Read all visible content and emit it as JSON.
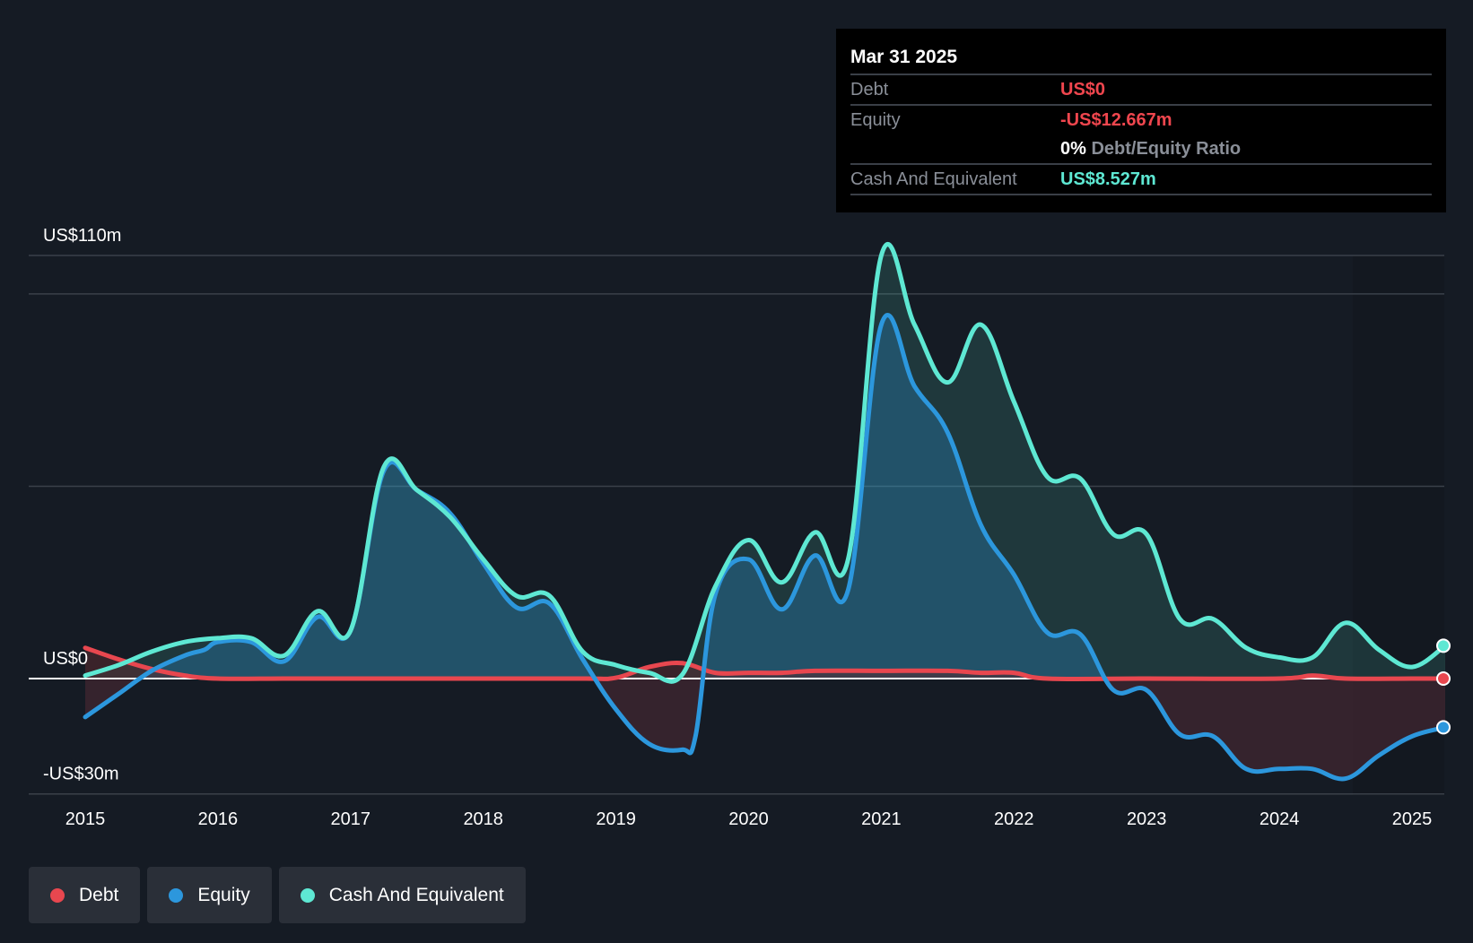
{
  "tooltip": {
    "date": "Mar 31 2025",
    "debt_label": "Debt",
    "debt_value": "US$0",
    "equity_label": "Equity",
    "equity_value": "-US$12.667m",
    "ratio_pct": "0%",
    "ratio_label": "Debt/Equity Ratio",
    "cash_label": "Cash And Equivalent",
    "cash_value": "US$8.527m"
  },
  "legend": [
    {
      "label": "Debt",
      "color": "#e8474f"
    },
    {
      "label": "Equity",
      "color": "#2c97dd"
    },
    {
      "label": "Cash And Equivalent",
      "color": "#5ee8d3"
    }
  ],
  "chart_data": {
    "type": "area",
    "y_tick_labels": [
      "US$110m",
      "US$0",
      "-US$30m"
    ],
    "ylim": [
      -30,
      110
    ],
    "xlim": [
      2015,
      2025.25
    ],
    "x_tick_labels": [
      "2015",
      "2016",
      "2017",
      "2018",
      "2019",
      "2020",
      "2021",
      "2022",
      "2023",
      "2024",
      "2025"
    ],
    "x_ticks": [
      2015,
      2016,
      2017,
      2018,
      2019,
      2020,
      2021,
      2022,
      2023,
      2024,
      2025
    ],
    "gridlines": [
      110,
      100,
      50,
      0,
      -30
    ],
    "colors": {
      "debt": "#e8474f",
      "equity": "#2c97dd",
      "cash": "#5ee8d3"
    },
    "series": [
      {
        "name": "Debt",
        "points": [
          [
            2015,
            8
          ],
          [
            2015.25,
            5
          ],
          [
            2015.5,
            2.5
          ],
          [
            2015.75,
            0.8
          ],
          [
            2016,
            0
          ],
          [
            2016.5,
            0
          ],
          [
            2017,
            0
          ],
          [
            2018,
            0
          ],
          [
            2018.75,
            0
          ],
          [
            2019,
            0.2
          ],
          [
            2019.25,
            3
          ],
          [
            2019.5,
            4
          ],
          [
            2019.75,
            1.5
          ],
          [
            2020,
            1.5
          ],
          [
            2020.25,
            1.5
          ],
          [
            2020.5,
            2
          ],
          [
            2021,
            2
          ],
          [
            2021.5,
            2
          ],
          [
            2021.75,
            1.5
          ],
          [
            2022,
            1.5
          ],
          [
            2022.25,
            0
          ],
          [
            2023,
            0
          ],
          [
            2024,
            0
          ],
          [
            2024.25,
            0.8
          ],
          [
            2024.5,
            0
          ],
          [
            2025,
            0
          ],
          [
            2025.25,
            0
          ]
        ]
      },
      {
        "name": "Equity",
        "points": [
          [
            2015,
            -10
          ],
          [
            2015.25,
            -4
          ],
          [
            2015.5,
            2
          ],
          [
            2015.75,
            6
          ],
          [
            2015.9,
            7.5
          ],
          [
            2016,
            9.5
          ],
          [
            2016.25,
            9.5
          ],
          [
            2016.5,
            4.5
          ],
          [
            2016.75,
            16
          ],
          [
            2017,
            12.5
          ],
          [
            2017.25,
            54
          ],
          [
            2017.5,
            49
          ],
          [
            2017.75,
            43
          ],
          [
            2018,
            30
          ],
          [
            2018.25,
            18.5
          ],
          [
            2018.5,
            19.5
          ],
          [
            2018.75,
            5
          ],
          [
            2019,
            -8
          ],
          [
            2019.25,
            -17
          ],
          [
            2019.5,
            -18.5
          ],
          [
            2019.6,
            -15
          ],
          [
            2019.75,
            22
          ],
          [
            2020,
            31
          ],
          [
            2020.25,
            18
          ],
          [
            2020.5,
            32
          ],
          [
            2020.75,
            23
          ],
          [
            2021,
            92
          ],
          [
            2021.25,
            76
          ],
          [
            2021.5,
            64
          ],
          [
            2021.75,
            40
          ],
          [
            2022,
            27
          ],
          [
            2022.25,
            12
          ],
          [
            2022.5,
            11.5
          ],
          [
            2022.75,
            -3
          ],
          [
            2023,
            -3
          ],
          [
            2023.25,
            -14.5
          ],
          [
            2023.5,
            -15
          ],
          [
            2023.75,
            -23.5
          ],
          [
            2024,
            -23.5
          ],
          [
            2024.25,
            -23.5
          ],
          [
            2024.5,
            -26
          ],
          [
            2024.75,
            -20
          ],
          [
            2025,
            -15
          ],
          [
            2025.25,
            -12.667
          ]
        ]
      },
      {
        "name": "Cash And Equivalent",
        "points": [
          [
            2015,
            0.8
          ],
          [
            2015.25,
            3.5
          ],
          [
            2015.5,
            7
          ],
          [
            2015.75,
            9.5
          ],
          [
            2016,
            10.5
          ],
          [
            2016.25,
            10.5
          ],
          [
            2016.5,
            6
          ],
          [
            2016.75,
            17.5
          ],
          [
            2017,
            12.5
          ],
          [
            2017.25,
            55
          ],
          [
            2017.5,
            49
          ],
          [
            2017.75,
            42
          ],
          [
            2018,
            31
          ],
          [
            2018.25,
            21.5
          ],
          [
            2018.5,
            21.5
          ],
          [
            2018.75,
            7
          ],
          [
            2019,
            3.5
          ],
          [
            2019.25,
            1.5
          ],
          [
            2019.5,
            1
          ],
          [
            2019.75,
            24
          ],
          [
            2020,
            36
          ],
          [
            2020.25,
            25
          ],
          [
            2020.5,
            38
          ],
          [
            2020.75,
            31
          ],
          [
            2021,
            110
          ],
          [
            2021.25,
            92
          ],
          [
            2021.5,
            77
          ],
          [
            2021.75,
            92
          ],
          [
            2022,
            72
          ],
          [
            2022.25,
            52.5
          ],
          [
            2022.5,
            52
          ],
          [
            2022.75,
            37.5
          ],
          [
            2023,
            37.5
          ],
          [
            2023.25,
            15.5
          ],
          [
            2023.5,
            15.5
          ],
          [
            2023.75,
            8
          ],
          [
            2024,
            5.5
          ],
          [
            2024.25,
            5.5
          ],
          [
            2024.5,
            14.5
          ],
          [
            2024.75,
            7.5
          ],
          [
            2025,
            3
          ],
          [
            2025.25,
            8.527
          ]
        ]
      }
    ]
  }
}
